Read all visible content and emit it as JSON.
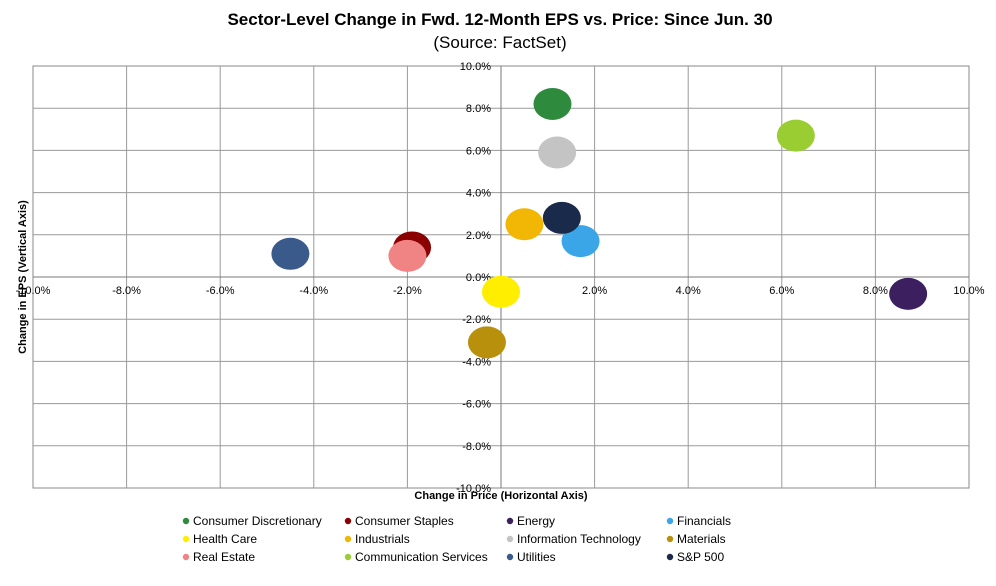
{
  "chart_data": {
    "type": "scatter",
    "title": "Sector-Level Change in Fwd. 12-Month EPS vs. Price: Since Jun. 30",
    "subtitle": "(Source: FactSet)",
    "xlabel": "Change in Price (Horizontal Axis)",
    "ylabel": "Change in EPS (Vertical Axis)",
    "xlim": [
      -10,
      10
    ],
    "ylim": [
      -10,
      10
    ],
    "x_ticks": [
      "-10.0%",
      "-8.0%",
      "-6.0%",
      "-4.0%",
      "-2.0%",
      "0.0%",
      "2.0%",
      "4.0%",
      "6.0%",
      "8.0%",
      "10.0%"
    ],
    "y_ticks": [
      "10.0%",
      "8.0%",
      "6.0%",
      "4.0%",
      "2.0%",
      "0.0%",
      "-2.0%",
      "-4.0%",
      "-6.0%",
      "-8.0%",
      "-10.0%"
    ],
    "grid": true,
    "legend_position": "bottom",
    "series": [
      {
        "name": "Consumer Discretionary",
        "x": 1.1,
        "y": 8.2,
        "color": "#2e8b3e"
      },
      {
        "name": "Consumer Staples",
        "x": -1.9,
        "y": 1.4,
        "color": "#8b0000"
      },
      {
        "name": "Energy",
        "x": 8.7,
        "y": -0.8,
        "color": "#3b1f5e"
      },
      {
        "name": "Financials",
        "x": 1.7,
        "y": 1.7,
        "color": "#3aa6e8"
      },
      {
        "name": "Health Care",
        "x": 0.0,
        "y": -0.7,
        "color": "#ffee00"
      },
      {
        "name": "Industrials",
        "x": 0.5,
        "y": 2.5,
        "color": "#f2b705"
      },
      {
        "name": "Information Technology",
        "x": 1.2,
        "y": 5.9,
        "color": "#c4c4c4"
      },
      {
        "name": "Materials",
        "x": -0.3,
        "y": -3.1,
        "color": "#b8900b"
      },
      {
        "name": "Real Estate",
        "x": -2.0,
        "y": 1.0,
        "color": "#f08484"
      },
      {
        "name": "Communication Services",
        "x": 6.3,
        "y": 6.7,
        "color": "#9acd32"
      },
      {
        "name": "Utilities",
        "x": -4.5,
        "y": 1.1,
        "color": "#3a5a8c"
      },
      {
        "name": "S&P 500",
        "x": 1.3,
        "y": 2.8,
        "color": "#1a2a4a"
      }
    ]
  }
}
